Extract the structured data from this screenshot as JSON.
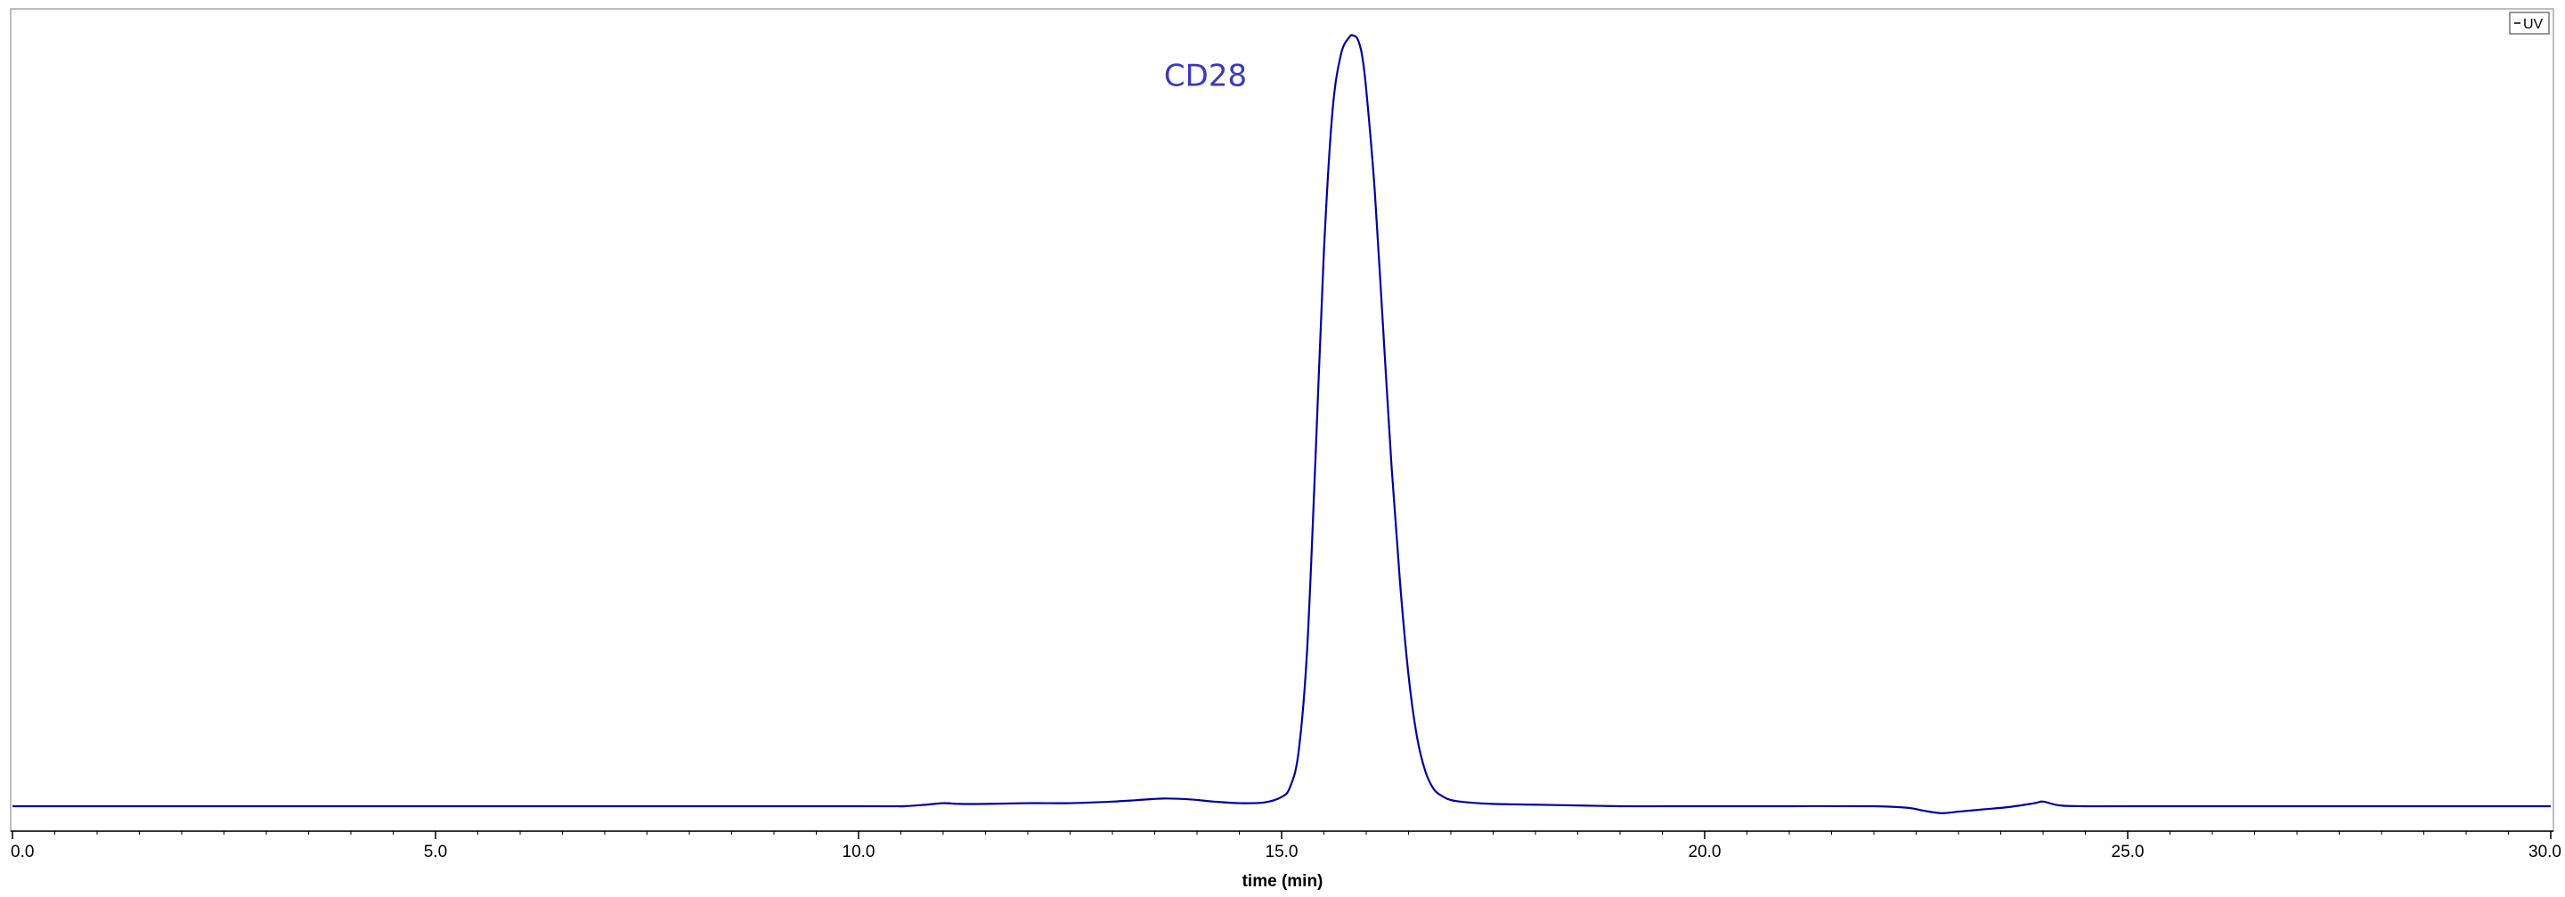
{
  "chart_data": {
    "type": "line",
    "title": "",
    "xlabel": "time (min)",
    "ylabel": "",
    "xlim": [
      0,
      30
    ],
    "ylim": [
      0,
      1
    ],
    "grid": false,
    "legend_position": "top-right",
    "x_ticks": [
      "0.0",
      "5.0",
      "10.0",
      "15.0",
      "20.0",
      "25.0",
      "30.0"
    ],
    "x_tick_values": [
      0,
      5,
      10,
      15,
      20,
      25,
      30
    ],
    "annotations": [
      {
        "text": "CD28",
        "x": 14.1,
        "y": 0.935,
        "color": "#3a3ab8"
      }
    ],
    "legend": [
      {
        "name": "UV",
        "color": "#000000"
      }
    ],
    "series": [
      {
        "name": "UV",
        "color": "#0000a0",
        "x": [
          0.0,
          5.0,
          10.0,
          10.5,
          10.8,
          11.0,
          11.2,
          11.5,
          12.0,
          12.5,
          13.0,
          13.3,
          13.6,
          13.9,
          14.2,
          14.5,
          14.8,
          15.0,
          15.1,
          15.2,
          15.3,
          15.4,
          15.5,
          15.6,
          15.7,
          15.8,
          15.85,
          15.9,
          15.95,
          16.0,
          16.1,
          16.2,
          16.3,
          16.4,
          16.5,
          16.6,
          16.7,
          16.8,
          16.9,
          17.0,
          17.2,
          17.5,
          18.0,
          18.5,
          19.0,
          19.5,
          20.0,
          21.0,
          22.0,
          22.4,
          22.6,
          22.8,
          23.0,
          23.3,
          23.6,
          23.9,
          24.0,
          24.2,
          24.5,
          25.0,
          27.0,
          30.0
        ],
        "y": [
          0.0,
          0.0,
          0.0,
          0.0,
          0.002,
          0.004,
          0.003,
          0.003,
          0.004,
          0.004,
          0.006,
          0.008,
          0.01,
          0.009,
          0.006,
          0.004,
          0.005,
          0.012,
          0.025,
          0.07,
          0.2,
          0.45,
          0.72,
          0.9,
          0.975,
          0.998,
          1.0,
          0.995,
          0.975,
          0.93,
          0.8,
          0.62,
          0.44,
          0.29,
          0.17,
          0.09,
          0.045,
          0.022,
          0.013,
          0.008,
          0.005,
          0.003,
          0.002,
          0.001,
          0.0,
          0.0,
          0.0,
          0.0,
          0.0,
          -0.002,
          -0.006,
          -0.009,
          -0.007,
          -0.004,
          -0.001,
          0.004,
          0.006,
          0.001,
          0.0,
          0.0,
          0.0,
          0.0
        ]
      }
    ]
  }
}
